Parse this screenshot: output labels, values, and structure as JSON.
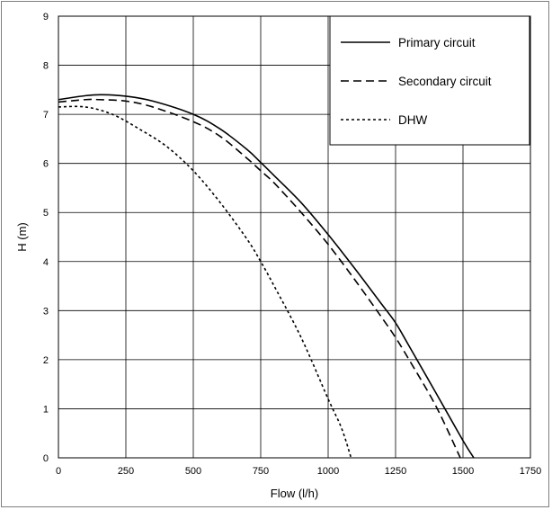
{
  "chart_data": {
    "type": "line",
    "xlabel": "Flow (l/h)",
    "ylabel": "H (m)",
    "xlim": [
      0,
      1750
    ],
    "ylim": [
      0,
      9
    ],
    "xticks": [
      0,
      250,
      500,
      750,
      1000,
      1250,
      1500,
      1750
    ],
    "yticks": [
      0,
      1,
      2,
      3,
      4,
      5,
      6,
      7,
      8,
      9
    ],
    "grid": true,
    "legend_position": "top-right",
    "series": [
      {
        "name": "Primary circuit",
        "line_style": "solid",
        "x": [
          0,
          100,
          160,
          250,
          350,
          500,
          600,
          700,
          750,
          800,
          900,
          1000,
          1100,
          1200,
          1250,
          1300,
          1400,
          1500,
          1540
        ],
        "y": [
          7.3,
          7.38,
          7.4,
          7.37,
          7.27,
          7.0,
          6.7,
          6.28,
          6.02,
          5.75,
          5.2,
          4.55,
          3.85,
          3.12,
          2.75,
          2.28,
          1.32,
          0.35,
          0.0
        ]
      },
      {
        "name": "Secondary circuit",
        "line_style": "dashed",
        "x": [
          0,
          100,
          150,
          250,
          350,
          500,
          600,
          700,
          750,
          800,
          900,
          1000,
          1100,
          1200,
          1250,
          1300,
          1400,
          1490
        ],
        "y": [
          7.25,
          7.3,
          7.3,
          7.27,
          7.15,
          6.85,
          6.55,
          6.1,
          5.85,
          5.6,
          5.0,
          4.35,
          3.62,
          2.85,
          2.45,
          2.0,
          1.05,
          0.0
        ]
      },
      {
        "name": "DHW",
        "line_style": "dotted",
        "x": [
          0,
          100,
          200,
          300,
          400,
          500,
          600,
          700,
          750,
          800,
          900,
          1000,
          1050,
          1085
        ],
        "y": [
          7.15,
          7.15,
          7.0,
          6.7,
          6.35,
          5.85,
          5.2,
          4.45,
          4.0,
          3.5,
          2.45,
          1.2,
          0.6,
          0.0
        ]
      }
    ]
  }
}
